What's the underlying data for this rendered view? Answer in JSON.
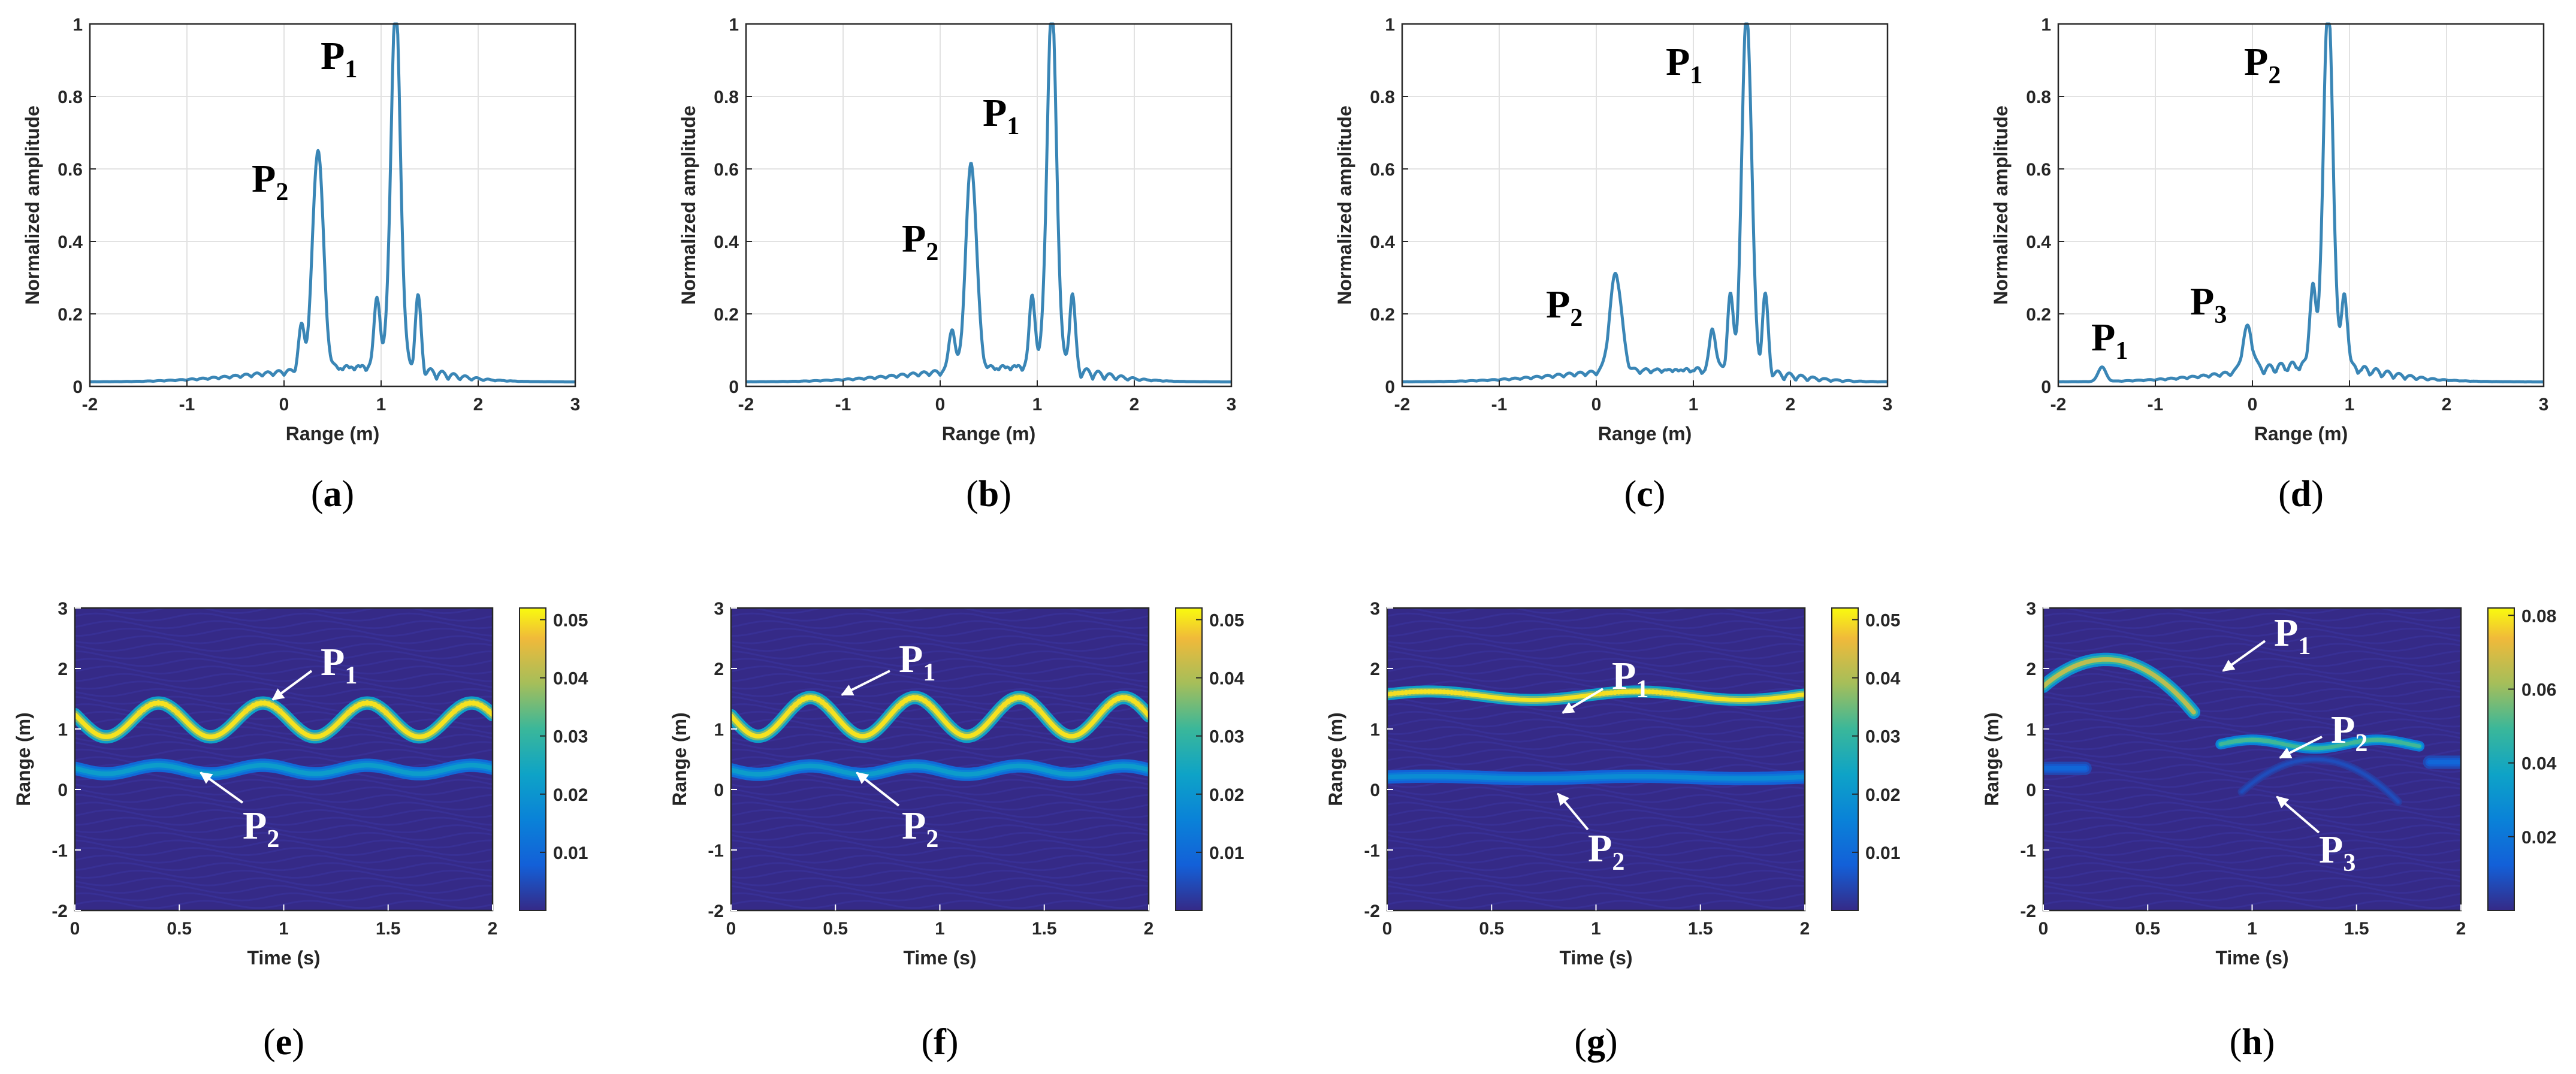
{
  "chart_data": [
    {
      "id": "a",
      "type": "line",
      "caption": "a",
      "xlabel": "Range (m)",
      "ylabel": "Normalized amplitude",
      "xlim": [
        -2,
        3
      ],
      "ylim": [
        0,
        1
      ],
      "xticks": [
        "-2",
        "-1",
        "0",
        "1",
        "2",
        "3"
      ],
      "yticks": [
        "0",
        "0.2",
        "0.4",
        "0.6",
        "0.8",
        "1"
      ],
      "grid": true,
      "color": "#3a86b6",
      "peaks": [
        [
          1.15,
          1.0,
          0.05
        ],
        [
          0.35,
          0.61,
          0.055
        ],
        [
          1.38,
          0.2,
          0.03
        ],
        [
          0.96,
          0.2,
          0.03
        ],
        [
          0.18,
          0.12,
          0.03
        ]
      ],
      "annotations": [
        {
          "text": "P",
          "sub": "1"
        },
        {
          "text": "P",
          "sub": "2"
        }
      ]
    },
    {
      "id": "b",
      "type": "line",
      "caption": "b",
      "xlabel": "Range (m)",
      "ylabel": "Normalized amplitude",
      "xlim": [
        -2,
        3
      ],
      "ylim": [
        0,
        1
      ],
      "xticks": [
        "-2",
        "-1",
        "0",
        "1",
        "2",
        "3"
      ],
      "yticks": [
        "0",
        "0.2",
        "0.4",
        "0.6",
        "0.8",
        "1"
      ],
      "grid": true,
      "color": "#3a86b6",
      "peaks": [
        [
          1.15,
          1.0,
          0.05
        ],
        [
          0.32,
          0.57,
          0.055
        ],
        [
          1.36,
          0.21,
          0.03
        ],
        [
          0.95,
          0.2,
          0.03
        ],
        [
          0.12,
          0.12,
          0.03
        ]
      ],
      "annotations": [
        {
          "text": "P",
          "sub": "1"
        },
        {
          "text": "P",
          "sub": "2"
        }
      ]
    },
    {
      "id": "c",
      "type": "line",
      "caption": "c",
      "xlabel": "Range (m)",
      "ylabel": "Normalized amplitude",
      "xlim": [
        -2,
        3
      ],
      "ylim": [
        0,
        1
      ],
      "xticks": [
        "-2",
        "-1",
        "0",
        "1",
        "2",
        "3"
      ],
      "yticks": [
        "0",
        "0.2",
        "0.4",
        "0.6",
        "0.8",
        "1"
      ],
      "grid": true,
      "color": "#3a86b6",
      "peaks": [
        [
          1.55,
          1.0,
          0.05
        ],
        [
          0.2,
          0.27,
          0.06
        ],
        [
          1.38,
          0.2,
          0.03
        ],
        [
          1.74,
          0.21,
          0.03
        ],
        [
          1.2,
          0.12,
          0.03
        ]
      ],
      "annotations": [
        {
          "text": "P",
          "sub": "1"
        },
        {
          "text": "P",
          "sub": "2"
        }
      ]
    },
    {
      "id": "d",
      "type": "line",
      "caption": "d",
      "xlabel": "Range (m)",
      "ylabel": "Normalized amplitude",
      "xlim": [
        -2,
        3
      ],
      "ylim": [
        0,
        1
      ],
      "xticks": [
        "-2",
        "-1",
        "0",
        "1",
        "2",
        "3"
      ],
      "yticks": [
        "0",
        "0.2",
        "0.4",
        "0.6",
        "0.8",
        "1"
      ],
      "grid": true,
      "color": "#3a86b6",
      "peaks": [
        [
          0.78,
          1.0,
          0.05
        ],
        [
          0.62,
          0.22,
          0.03
        ],
        [
          0.95,
          0.2,
          0.03
        ],
        [
          -0.05,
          0.12,
          0.05
        ],
        [
          -1.55,
          0.04,
          0.04
        ]
      ],
      "annotations": [
        {
          "text": "P",
          "sub": "2"
        },
        {
          "text": "P",
          "sub": "1"
        },
        {
          "text": "P",
          "sub": "3"
        }
      ]
    },
    {
      "id": "e",
      "type": "heatmap",
      "caption": "e",
      "xlabel": "Time (s)",
      "ylabel": "Range (m)",
      "xlim": [
        0,
        2
      ],
      "ylim": [
        -2,
        3
      ],
      "xticks": [
        "0",
        "0.5",
        "1",
        "1.5",
        "2"
      ],
      "yticks": [
        "-2",
        "-1",
        "0",
        "1",
        "2",
        "3"
      ],
      "colorbar": {
        "range": [
          0,
          0.052
        ],
        "ticks": [
          "0.01",
          "0.02",
          "0.03",
          "0.04",
          "0.05"
        ],
        "tick_values": [
          0.01,
          0.02,
          0.03,
          0.04,
          0.05
        ]
      },
      "traces": [
        {
          "type": "sine",
          "base": 1.15,
          "amp": 0.28,
          "period": 0.5,
          "phase": 0.4,
          "intensity": 0.05,
          "width": 0.1
        },
        {
          "type": "sine",
          "base": 0.33,
          "amp": 0.07,
          "period": 0.5,
          "phase": 0.4,
          "intensity": 0.022,
          "width": 0.1
        }
      ],
      "annotations": [
        {
          "text": "P",
          "sub": "1"
        },
        {
          "text": "P",
          "sub": "2"
        }
      ]
    },
    {
      "id": "f",
      "type": "heatmap",
      "caption": "f",
      "xlabel": "Time (s)",
      "ylabel": "Range (m)",
      "xlim": [
        0,
        2
      ],
      "ylim": [
        -2,
        3
      ],
      "xticks": [
        "0",
        "0.5",
        "1",
        "1.5",
        "2"
      ],
      "yticks": [
        "-2",
        "-1",
        "0",
        "1",
        "2",
        "3"
      ],
      "colorbar": {
        "range": [
          0,
          0.052
        ],
        "ticks": [
          "0.01",
          "0.02",
          "0.03",
          "0.04",
          "0.05"
        ],
        "tick_values": [
          0.01,
          0.02,
          0.03,
          0.04,
          0.05
        ]
      },
      "traces": [
        {
          "type": "sine",
          "base": 1.2,
          "amp": 0.32,
          "period": 0.5,
          "phase": 0.38,
          "intensity": 0.05,
          "width": 0.1
        },
        {
          "type": "sine",
          "base": 0.32,
          "amp": 0.07,
          "period": 0.5,
          "phase": 0.38,
          "intensity": 0.022,
          "width": 0.1
        }
      ],
      "annotations": [
        {
          "text": "P",
          "sub": "1"
        },
        {
          "text": "P",
          "sub": "2"
        }
      ]
    },
    {
      "id": "g",
      "type": "heatmap",
      "caption": "g",
      "xlabel": "Time (s)",
      "ylabel": "Range (m)",
      "xlim": [
        0,
        2
      ],
      "ylim": [
        -2,
        3
      ],
      "xticks": [
        "0",
        "0.5",
        "1",
        "1.5",
        "2"
      ],
      "yticks": [
        "-2",
        "-1",
        "0",
        "1",
        "2",
        "3"
      ],
      "colorbar": {
        "range": [
          0,
          0.052
        ],
        "ticks": [
          "0.01",
          "0.02",
          "0.03",
          "0.04",
          "0.05"
        ],
        "tick_values": [
          0.01,
          0.02,
          0.03,
          0.04,
          0.05
        ]
      },
      "traces": [
        {
          "type": "sine",
          "base": 1.55,
          "amp": 0.07,
          "period": 1.0,
          "phase": 1.2,
          "intensity": 0.05,
          "width": 0.09
        },
        {
          "type": "sine",
          "base": 0.2,
          "amp": 0.02,
          "period": 1.0,
          "phase": 1.2,
          "intensity": 0.018,
          "width": 0.1
        }
      ],
      "annotations": [
        {
          "text": "P",
          "sub": "1"
        },
        {
          "text": "P",
          "sub": "2"
        }
      ]
    },
    {
      "id": "h",
      "type": "heatmap",
      "caption": "h",
      "xlabel": "Time (s)",
      "ylabel": "Range (m)",
      "xlim": [
        0,
        2
      ],
      "ylim": [
        -2,
        3
      ],
      "xticks": [
        "0",
        "0.5",
        "1",
        "1.5",
        "2"
      ],
      "yticks": [
        "-2",
        "-1",
        "0",
        "1",
        "2",
        "3"
      ],
      "colorbar": {
        "range": [
          0,
          0.082
        ],
        "ticks": [
          "0.02",
          "0.04",
          "0.06",
          "0.08"
        ],
        "tick_values": [
          0.02,
          0.04,
          0.06,
          0.08
        ]
      },
      "traces": [
        {
          "type": "arch",
          "t0": 0.3,
          "peak": 2.15,
          "k": 9.0,
          "tmin": 0.0,
          "tmax": 0.72,
          "intensity": 0.065,
          "width": 0.1
        },
        {
          "type": "sine",
          "base": 0.75,
          "amp": 0.07,
          "period": 0.6,
          "phase": 1.0,
          "intensity": 0.05,
          "width": 0.08,
          "tmin": 0.85,
          "tmax": 1.8
        },
        {
          "type": "arch",
          "t0": 1.3,
          "peak": 0.5,
          "k": 8.0,
          "tmin": 0.95,
          "tmax": 1.7,
          "intensity": 0.008,
          "width": 0.06
        },
        {
          "type": "sine",
          "base": 0.35,
          "amp": 0.0,
          "period": 1.0,
          "phase": 0,
          "intensity": 0.015,
          "width": 0.1,
          "tmin": 0.0,
          "tmax": 0.2
        },
        {
          "type": "sine",
          "base": 0.45,
          "amp": 0.0,
          "period": 1.0,
          "phase": 0,
          "intensity": 0.015,
          "width": 0.1,
          "tmin": 1.85,
          "tmax": 2.0
        }
      ],
      "annotations": [
        {
          "text": "P",
          "sub": "1"
        },
        {
          "text": "P",
          "sub": "2"
        },
        {
          "text": "P",
          "sub": "3"
        }
      ]
    }
  ]
}
